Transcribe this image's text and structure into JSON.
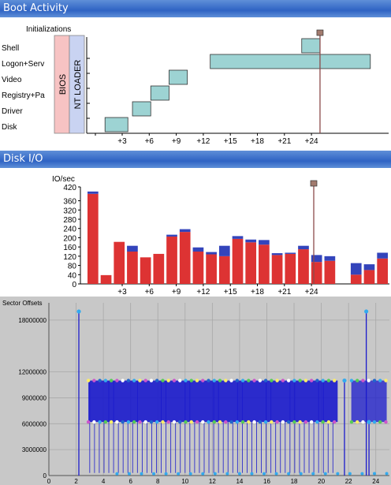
{
  "sections": {
    "boot_title": "Boot Activity",
    "disk_title": "Disk I/O"
  },
  "chart_data": [
    {
      "type": "bar",
      "chart_kind": "gantt",
      "title": "Initializations",
      "rows": [
        "Shell",
        "Logon+Serv",
        "Video",
        "Registry+Pa",
        "Driver",
        "Disk"
      ],
      "phases": [
        {
          "label": "BIOS",
          "color": "#f7c3c3"
        },
        {
          "label": "NT LOADER",
          "color": "#c9d3f2"
        }
      ],
      "tasks": [
        {
          "row": "Disk",
          "start": 0,
          "end": 2.5
        },
        {
          "row": "Driver",
          "start": 3,
          "end": 5
        },
        {
          "row": "Registry+Pa",
          "start": 5,
          "end": 7
        },
        {
          "row": "Video",
          "start": 7,
          "end": 9
        },
        {
          "row": "Logon+Serv",
          "start": 11.5,
          "end": 29
        },
        {
          "row": "Shell",
          "start": 21.5,
          "end": 23.5
        }
      ],
      "xticks": [
        "+3",
        "+6",
        "+9",
        "+12",
        "+15",
        "+18",
        "+21",
        "+24"
      ],
      "xlim": [
        -2,
        31
      ],
      "marker_x": 23.5,
      "bar_color": "#9dd3d3"
    },
    {
      "type": "bar",
      "stacked": true,
      "ylabel": "IO/sec",
      "x": [
        1,
        2,
        3,
        4,
        5,
        6,
        7,
        8,
        9,
        10,
        11,
        12,
        13,
        14,
        15,
        16,
        17,
        18,
        19,
        20,
        21,
        22,
        23
      ],
      "series": [
        {
          "color": "#dd3333",
          "values": [
            390,
            38,
            182,
            140,
            115,
            130,
            205,
            225,
            140,
            128,
            120,
            195,
            180,
            170,
            125,
            130,
            150,
            95,
            100,
            0,
            40,
            60,
            110
          ]
        },
        {
          "color": "#3344bb",
          "values": [
            10,
            0,
            0,
            25,
            0,
            0,
            8,
            12,
            18,
            10,
            45,
            12,
            12,
            20,
            8,
            5,
            15,
            30,
            20,
            0,
            50,
            25,
            25
          ]
        }
      ],
      "yticks": [
        0,
        40,
        80,
        120,
        160,
        200,
        240,
        280,
        320,
        360,
        420
      ],
      "xticks": [
        "+3",
        "+6",
        "+9",
        "+12",
        "+15",
        "+18",
        "+21",
        "+24"
      ],
      "ylim": [
        0,
        420
      ],
      "marker_x": 18.5
    },
    {
      "type": "scatter",
      "ylabel": "Sector Offsets",
      "yticks": [
        "0",
        "3000000",
        "6000000",
        "9000000",
        "12000000",
        "18000000"
      ],
      "xticks": [
        "0",
        "2",
        "4",
        "6",
        "8",
        "10",
        "12",
        "14",
        "16",
        "18",
        "20",
        "22",
        "24"
      ],
      "xlim": [
        0,
        25
      ],
      "ylim": [
        0,
        20000000
      ],
      "band_values": [
        11000000,
        6200000
      ],
      "spike_points": [
        {
          "x": 2.2,
          "y": 19000000
        },
        {
          "x": 23.3,
          "y": 19000000
        },
        {
          "x": 21.7,
          "y": 11000000
        },
        {
          "x": 23.5,
          "y": 6200000
        }
      ],
      "line_color": "#1a1acc",
      "point_color": "#33aaee",
      "background": "#c8c8c8"
    }
  ]
}
